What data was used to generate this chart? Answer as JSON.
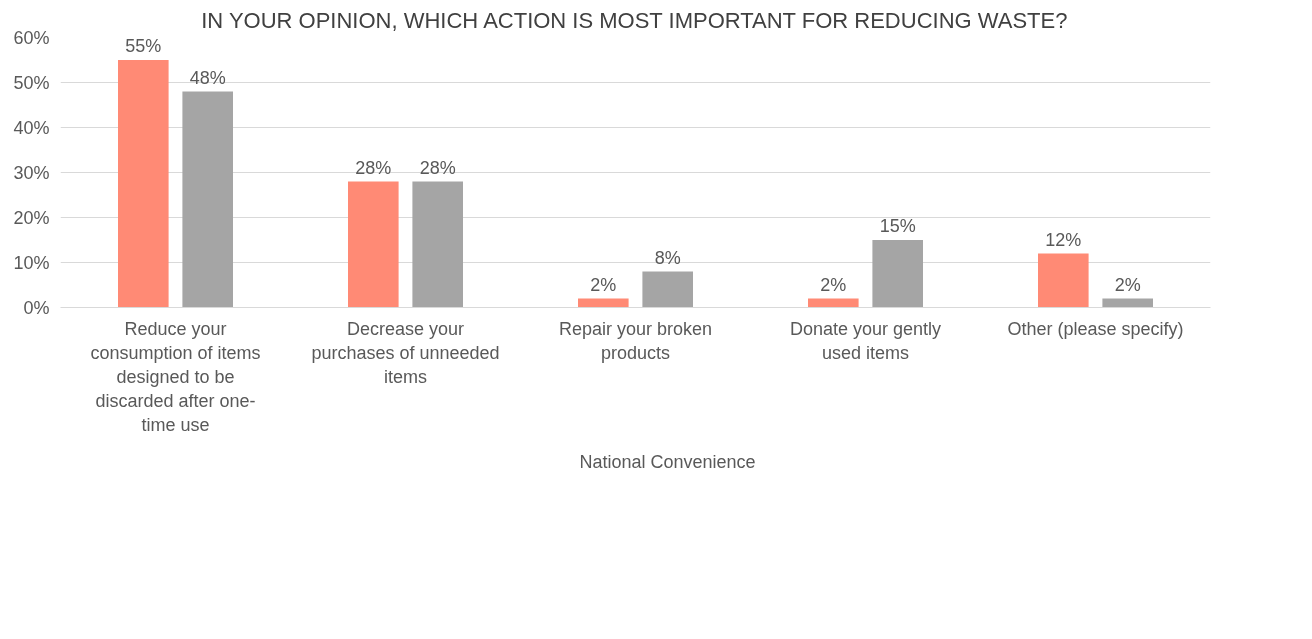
{
  "chart_data": {
    "type": "bar",
    "title": "IN YOUR OPINION, WHICH ACTION IS MOST IMPORTANT FOR REDUCING WASTE?",
    "categories": [
      "Reduce your consumption of items designed to be discarded after one-time use",
      "Decrease your purchases of unneeded items",
      "Repair your broken products",
      "Donate your gently used items",
      "Other (please specify)"
    ],
    "series": [
      {
        "name": "National Convenience",
        "color": "#ff8a75",
        "values": [
          55,
          28,
          2,
          2,
          12
        ],
        "value_labels": [
          "55%",
          "28%",
          "2%",
          "2%",
          "12%"
        ]
      },
      {
        "color": "#a5a5a5",
        "values": [
          48,
          28,
          8,
          15,
          2
        ],
        "value_labels": [
          "48%",
          "28%",
          "8%",
          "15%",
          "2%"
        ]
      }
    ],
    "ylim": [
      0,
      60
    ],
    "yticks": [
      {
        "value": 0,
        "label": "0%"
      },
      {
        "value": 10,
        "label": "10%"
      },
      {
        "value": 20,
        "label": "20%"
      },
      {
        "value": 30,
        "label": "30%"
      },
      {
        "value": 40,
        "label": "40%"
      },
      {
        "value": 50,
        "label": "50%"
      },
      {
        "value": 60,
        "label": "60%"
      }
    ],
    "grid": "y",
    "legend": "bottom"
  }
}
